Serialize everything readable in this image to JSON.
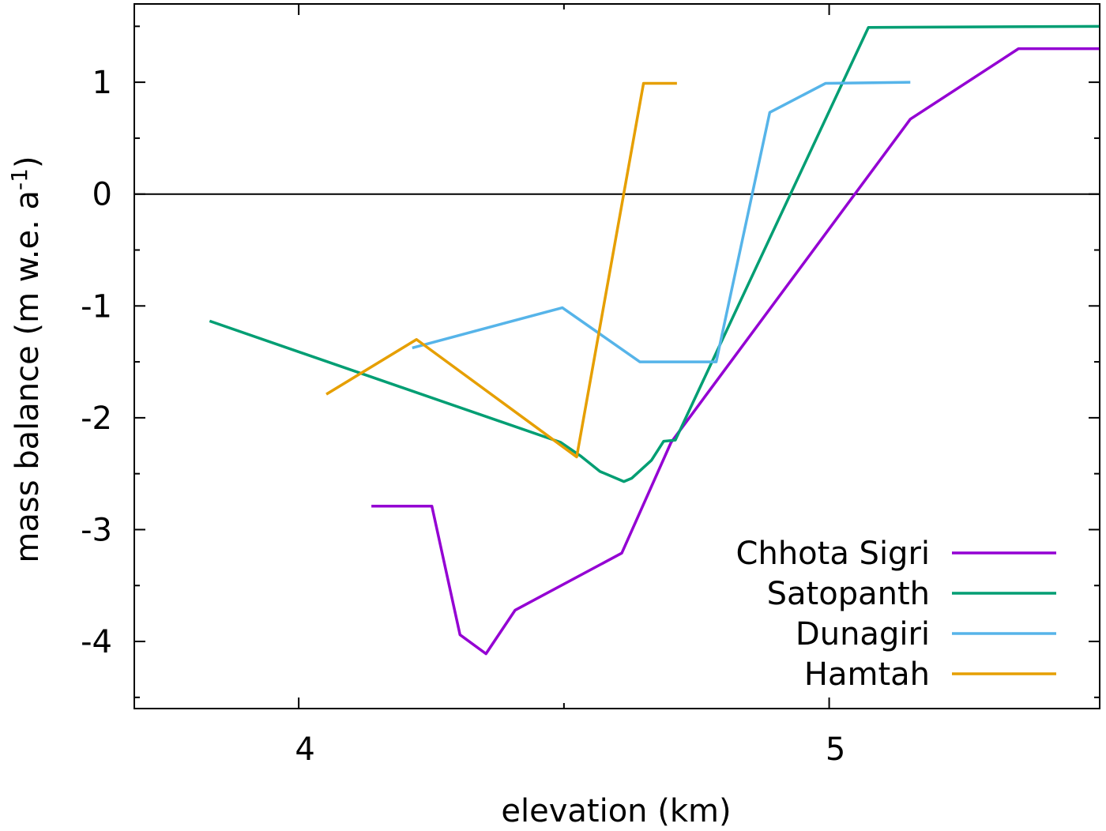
{
  "chart_data": {
    "type": "line",
    "title": "",
    "xlabel": "elevation (km)",
    "ylabel": "mass balance (m w.e. a",
    "ylabel_sup": "-1",
    "ylabel_end": ")",
    "xlim": [
      3.69,
      5.51
    ],
    "ylim": [
      -4.6,
      1.7
    ],
    "xticks": [
      {
        "v": 4,
        "label": "4"
      },
      {
        "v": 5,
        "label": "5"
      }
    ],
    "xminor": [
      4.5
    ],
    "yticks": [
      {
        "v": 1,
        "label": "1"
      },
      {
        "v": 0,
        "label": "0"
      },
      {
        "v": -1,
        "label": "-1"
      },
      {
        "v": -2,
        "label": "-2"
      },
      {
        "v": -3,
        "label": "-3"
      },
      {
        "v": -4,
        "label": "-4"
      }
    ],
    "yminor": [
      1.5,
      0.5,
      -0.5,
      -1.5,
      -2.5,
      -3.5,
      -4.5
    ],
    "zero_line": true,
    "legend_position": "bottom-right",
    "series": [
      {
        "name": "Chhota Sigri",
        "color": "#9400d3",
        "points": [
          [
            4.137,
            -2.79
          ],
          [
            4.251,
            -2.79
          ],
          [
            4.304,
            -3.94
          ],
          [
            4.353,
            -4.11
          ],
          [
            4.408,
            -3.72
          ],
          [
            4.609,
            -3.21
          ],
          [
            4.702,
            -2.22
          ],
          [
            5.153,
            0.67
          ],
          [
            5.357,
            1.3
          ],
          [
            5.509,
            1.3
          ]
        ]
      },
      {
        "name": "Satopanth",
        "color": "#009e73",
        "points": [
          [
            3.832,
            -1.135
          ],
          [
            4.494,
            -2.22
          ],
          [
            4.531,
            -2.34
          ],
          [
            4.568,
            -2.48
          ],
          [
            4.613,
            -2.57
          ],
          [
            4.628,
            -2.54
          ],
          [
            4.665,
            -2.38
          ],
          [
            4.688,
            -2.21
          ],
          [
            4.71,
            -2.2
          ],
          [
            5.074,
            1.49
          ],
          [
            5.509,
            1.5
          ]
        ]
      },
      {
        "name": "Dunagiri",
        "color": "#56b4e9",
        "points": [
          [
            4.214,
            -1.375
          ],
          [
            4.497,
            -1.016
          ],
          [
            4.643,
            -1.5
          ],
          [
            4.787,
            -1.5
          ],
          [
            4.888,
            0.73
          ],
          [
            4.993,
            0.99
          ],
          [
            5.153,
            1.0
          ]
        ]
      },
      {
        "name": "Hamtah",
        "color": "#e69f00",
        "points": [
          [
            4.052,
            -1.79
          ],
          [
            4.222,
            -1.3
          ],
          [
            4.524,
            -2.35
          ],
          [
            4.65,
            0.99
          ],
          [
            4.713,
            0.99
          ]
        ]
      }
    ]
  }
}
